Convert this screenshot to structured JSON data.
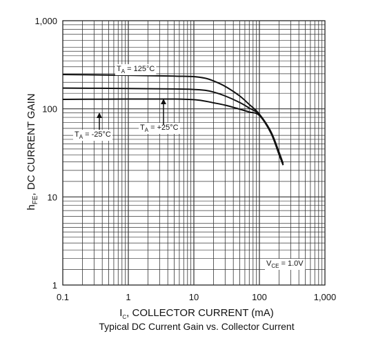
{
  "chart_data": {
    "type": "line",
    "title": "",
    "caption": "Typical DC Current Gain vs. Collector Current",
    "xlabel": {
      "main": "I",
      "sub": "C",
      "rest": ", COLLECTOR CURRENT (mA)"
    },
    "ylabel": {
      "main": "h",
      "sub": "FE",
      "rest": ", DC CURRENT GAIN"
    },
    "x_scale": "log",
    "y_scale": "log",
    "xlim": [
      0.1,
      1000
    ],
    "ylim": [
      1,
      1000
    ],
    "x_ticks": [
      {
        "value": 0.1,
        "label": "0.1"
      },
      {
        "value": 1,
        "label": "1"
      },
      {
        "value": 10,
        "label": "10"
      },
      {
        "value": 100,
        "label": "100"
      },
      {
        "value": 1000,
        "label": "1,000"
      }
    ],
    "y_ticks": [
      {
        "value": 1,
        "label": "1"
      },
      {
        "value": 10,
        "label": "10"
      },
      {
        "value": 100,
        "label": "100"
      },
      {
        "value": 1000,
        "label": "1,000"
      }
    ],
    "grid": true,
    "series": [
      {
        "key": "ta125",
        "x": [
          0.1,
          1,
          5,
          10,
          15,
          20,
          30,
          50,
          70,
          100,
          150,
          200,
          230
        ],
        "y": [
          245,
          240,
          235,
          232,
          222,
          207,
          180,
          140,
          112,
          87,
          55,
          32,
          24
        ]
      },
      {
        "key": "ta25",
        "x": [
          0.1,
          1,
          5,
          10,
          15,
          20,
          30,
          50,
          70,
          100,
          150,
          200,
          230
        ],
        "y": [
          172,
          170,
          168,
          166,
          162,
          155,
          140,
          118,
          102,
          86,
          54,
          31,
          23
        ]
      },
      {
        "key": "tam25",
        "x": [
          0.1,
          1,
          5,
          10,
          15,
          20,
          30,
          50,
          70,
          100,
          150,
          200,
          230
        ],
        "y": [
          128,
          129,
          129,
          127,
          122,
          117,
          110,
          99,
          92,
          84,
          53,
          30,
          23
        ]
      }
    ],
    "annotations": [
      {
        "key": "ta125",
        "main": "T",
        "sub": "A",
        "rest": " = 125°C"
      },
      {
        "key": "ta25",
        "main": "T",
        "sub": "A",
        "rest": " = +25°C"
      },
      {
        "key": "tam25",
        "main": "T",
        "sub": "A",
        "rest": " = -25°C"
      },
      {
        "key": "vce",
        "main": "V",
        "sub": "CE",
        "rest": " = 1.0V"
      }
    ],
    "colors": {
      "line": "#111111",
      "grid": "#333333",
      "background": "#ffffff"
    }
  }
}
